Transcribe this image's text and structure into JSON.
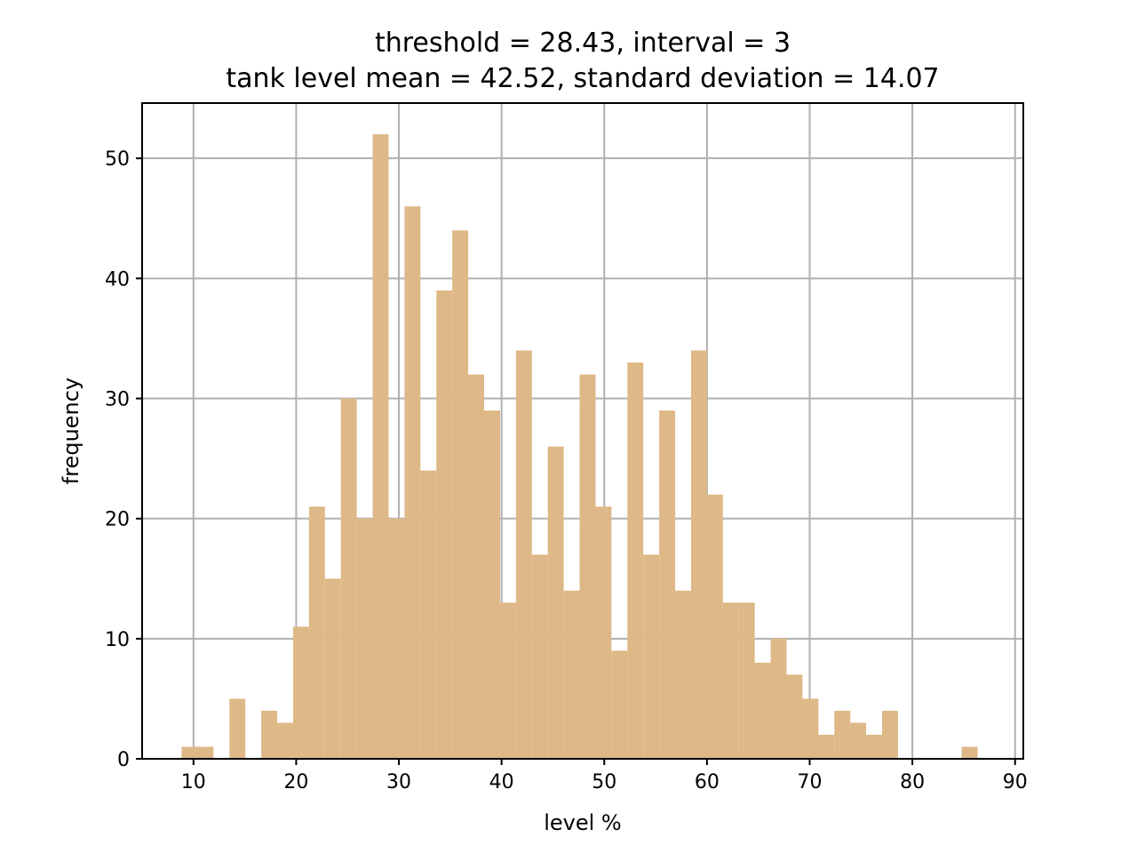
{
  "chart_data": {
    "type": "bar",
    "title_line1": "threshold = 28.43, interval = 3",
    "title_line2": "tank level mean = 42.52, standard deviation = 14.07",
    "xlabel": "level %",
    "ylabel": "frequency",
    "xlim": [
      5,
      90.8
    ],
    "ylim": [
      0,
      54.6
    ],
    "xticks": [
      10,
      20,
      30,
      40,
      50,
      60,
      70,
      80,
      90
    ],
    "yticks": [
      0,
      10,
      20,
      30,
      40,
      50
    ],
    "grid": true,
    "bar_color": "#deb887",
    "bin_width": 1.55,
    "bin_starts": [
      8.85,
      10.4,
      11.95,
      13.5,
      15.05,
      16.6,
      18.15,
      19.7,
      21.25,
      22.8,
      24.35,
      25.9,
      27.45,
      29.0,
      30.55,
      32.1,
      33.65,
      35.2,
      36.75,
      38.3,
      39.85,
      41.4,
      42.95,
      44.5,
      46.05,
      47.6,
      49.15,
      50.7,
      52.25,
      53.8,
      55.35,
      56.9,
      58.45,
      60.0,
      61.55,
      63.1,
      64.65,
      66.2,
      67.75,
      69.3,
      70.85,
      72.4,
      73.95,
      75.5,
      77.05,
      78.6,
      80.15,
      81.7,
      83.25,
      84.8
    ],
    "counts": [
      1,
      1,
      0,
      5,
      0,
      4,
      3,
      11,
      21,
      15,
      30,
      20,
      52,
      20,
      46,
      24,
      39,
      44,
      32,
      29,
      13,
      34,
      17,
      26,
      14,
      32,
      21,
      9,
      33,
      17,
      29,
      14,
      34,
      22,
      13,
      13,
      8,
      10,
      7,
      5,
      2,
      4,
      3,
      2,
      4,
      0,
      0,
      0,
      0,
      1
    ]
  }
}
